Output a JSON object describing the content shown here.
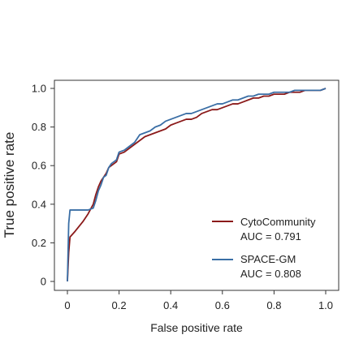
{
  "chart_data": {
    "type": "line",
    "title": "",
    "xlabel": "False positive rate",
    "ylabel": "True positive rate",
    "xlim": [
      0,
      1
    ],
    "ylim": [
      0,
      1
    ],
    "xticks": [
      0,
      0.2,
      0.4,
      0.6,
      0.8,
      1.0
    ],
    "xtick_labels": [
      "0",
      "0.2",
      "0.4",
      "0.6",
      "0.8",
      "1.0"
    ],
    "yticks": [
      0,
      0.2,
      0.4,
      0.6,
      0.8,
      1.0
    ],
    "ytick_labels": [
      "0",
      "0.2",
      "0.4",
      "0.6",
      "0.8",
      "1.0"
    ],
    "grid": false,
    "legend_position": "bottom-right",
    "series": [
      {
        "name": "CytoCommunity",
        "auc_label": "AUC = 0.791",
        "color": "#8b1a1a",
        "x": [
          0,
          0.005,
          0.01,
          0.03,
          0.06,
          0.08,
          0.1,
          0.11,
          0.12,
          0.13,
          0.14,
          0.15,
          0.16,
          0.17,
          0.18,
          0.19,
          0.2,
          0.22,
          0.24,
          0.26,
          0.27,
          0.28,
          0.3,
          0.32,
          0.34,
          0.36,
          0.38,
          0.4,
          0.42,
          0.44,
          0.46,
          0.48,
          0.5,
          0.52,
          0.54,
          0.56,
          0.58,
          0.6,
          0.62,
          0.64,
          0.66,
          0.68,
          0.7,
          0.72,
          0.74,
          0.76,
          0.78,
          0.8,
          0.82,
          0.84,
          0.86,
          0.88,
          0.9,
          0.92,
          0.94,
          0.96,
          0.98,
          1.0
        ],
        "y": [
          0,
          0.15,
          0.23,
          0.26,
          0.31,
          0.35,
          0.4,
          0.45,
          0.49,
          0.52,
          0.54,
          0.56,
          0.59,
          0.6,
          0.61,
          0.62,
          0.66,
          0.67,
          0.69,
          0.71,
          0.72,
          0.73,
          0.75,
          0.76,
          0.77,
          0.78,
          0.79,
          0.81,
          0.82,
          0.83,
          0.84,
          0.84,
          0.85,
          0.87,
          0.88,
          0.89,
          0.89,
          0.9,
          0.91,
          0.92,
          0.92,
          0.93,
          0.94,
          0.95,
          0.95,
          0.96,
          0.96,
          0.97,
          0.97,
          0.97,
          0.98,
          0.98,
          0.98,
          0.99,
          0.99,
          0.99,
          0.99,
          1.0
        ]
      },
      {
        "name": "SPACE-GM",
        "auc_label": "AUC = 0.808",
        "color": "#3a6ea5",
        "x": [
          0,
          0.005,
          0.01,
          0.03,
          0.06,
          0.08,
          0.1,
          0.11,
          0.12,
          0.13,
          0.14,
          0.15,
          0.16,
          0.17,
          0.18,
          0.19,
          0.2,
          0.22,
          0.24,
          0.26,
          0.27,
          0.28,
          0.3,
          0.32,
          0.34,
          0.36,
          0.38,
          0.4,
          0.42,
          0.44,
          0.46,
          0.48,
          0.5,
          0.52,
          0.54,
          0.56,
          0.58,
          0.6,
          0.62,
          0.64,
          0.66,
          0.68,
          0.7,
          0.72,
          0.74,
          0.76,
          0.78,
          0.8,
          0.82,
          0.84,
          0.86,
          0.88,
          0.9,
          0.92,
          0.94,
          0.96,
          0.98,
          1.0
        ],
        "y": [
          0,
          0.3,
          0.37,
          0.37,
          0.37,
          0.37,
          0.38,
          0.42,
          0.47,
          0.5,
          0.54,
          0.55,
          0.59,
          0.61,
          0.62,
          0.63,
          0.67,
          0.68,
          0.7,
          0.72,
          0.74,
          0.76,
          0.77,
          0.78,
          0.8,
          0.81,
          0.83,
          0.84,
          0.85,
          0.86,
          0.87,
          0.87,
          0.88,
          0.89,
          0.9,
          0.91,
          0.92,
          0.92,
          0.93,
          0.94,
          0.94,
          0.95,
          0.96,
          0.96,
          0.97,
          0.97,
          0.97,
          0.98,
          0.98,
          0.98,
          0.98,
          0.99,
          0.99,
          0.99,
          0.99,
          0.99,
          0.99,
          1.0
        ]
      }
    ],
    "reference_line": "none"
  }
}
